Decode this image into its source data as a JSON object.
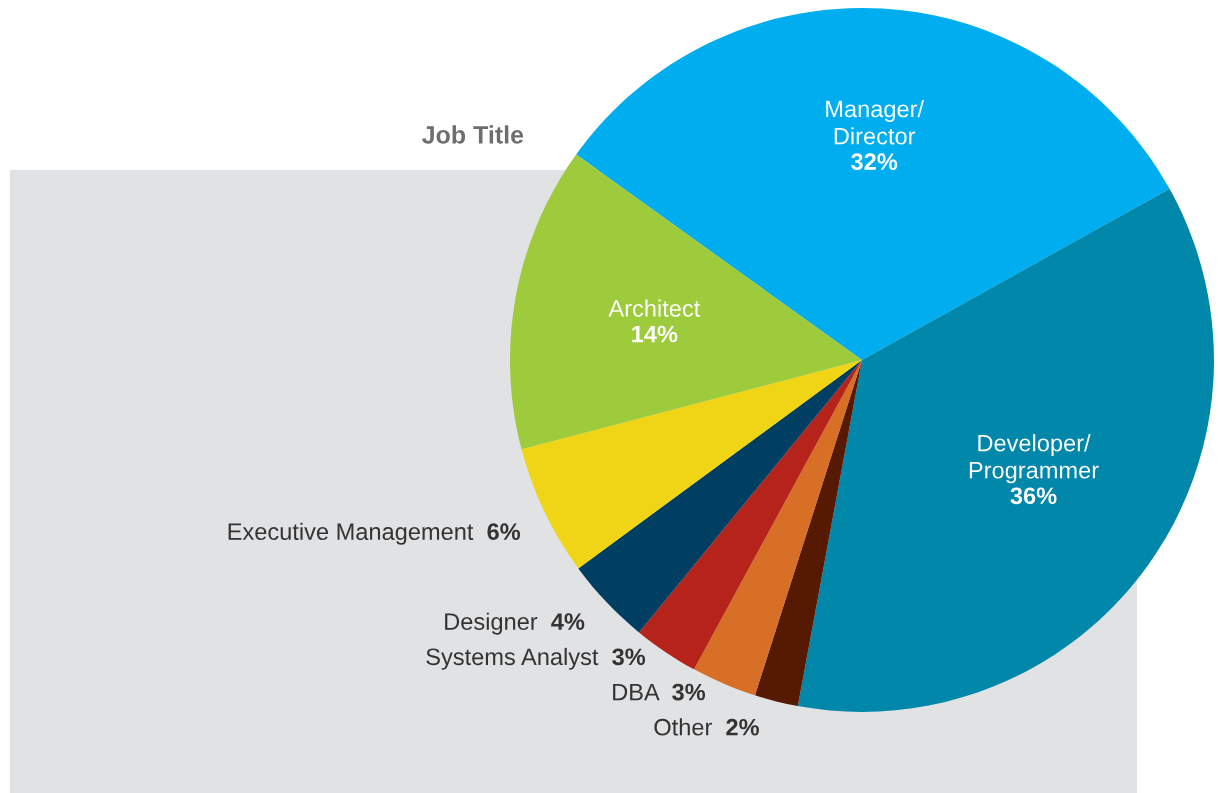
{
  "chart_data": {
    "type": "pie",
    "title": "Job Title",
    "categories": [
      "Manager/\nDirector",
      "Developer/\nProgrammer",
      "Other",
      "DBA",
      "Systems Analyst",
      "Designer",
      "Executive Management",
      "Architect"
    ],
    "values": [
      32,
      36,
      2,
      3,
      3,
      4,
      6,
      14
    ],
    "colors": [
      "#00aeef",
      "#0087aa",
      "#561a02",
      "#d86f27",
      "#b5231b",
      "#003e62",
      "#efd515",
      "#9dcb3b"
    ],
    "value_labels": [
      "32%",
      "36%",
      "2%",
      "3%",
      "3%",
      "4%",
      "6%",
      "14%"
    ],
    "legend": false
  }
}
